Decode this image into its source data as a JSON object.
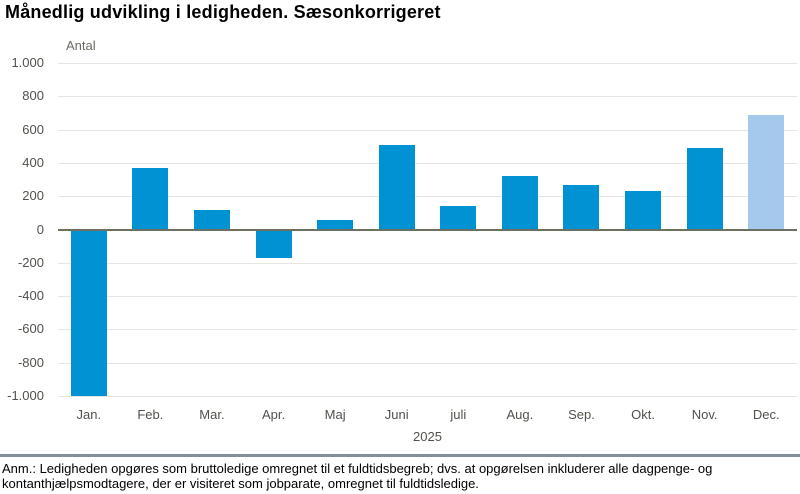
{
  "page": {
    "title": "Månedlig udvikling i ledigheden. Sæsonkorrigeret",
    "footnote": "Anm.: Ledigheden opgøres som bruttoledige omregnet til et fuldtidsbegreb; dvs. at opgørelsen inkluderer alle dagpenge- og kontanthjælpsmodtagere, der er visiteret som jobparate, omregnet til fuldtidsledige."
  },
  "chart_data": {
    "type": "bar",
    "title": "Månedlig udvikling i ledigheden. Sæsonkorrigeret",
    "unit_label": "Antal",
    "xlabel": "2025",
    "ylabel": "Antal",
    "categories": [
      "Jan.",
      "Feb.",
      "Mar.",
      "Apr.",
      "Maj",
      "Juni",
      "juli",
      "Aug.",
      "Sep.",
      "Okt.",
      "Nov.",
      "Dec."
    ],
    "values": [
      -1000,
      370,
      120,
      -170,
      60,
      510,
      140,
      320,
      270,
      230,
      490,
      690
    ],
    "highlight_index": 11,
    "ylim": [
      -1000,
      1000
    ],
    "ytick_step": 200,
    "ytick_labels": [
      "1.000",
      "800",
      "600",
      "400",
      "200",
      "0",
      "-200",
      "-400",
      "-600",
      "-800",
      "-1.000"
    ],
    "grid": true,
    "legend": "none",
    "colors": {
      "bar": "#0092d2",
      "highlight_bar": "#a4c9ed",
      "gridline": "#e6e6e0",
      "zero_line": "#6c7060",
      "axis_text": "#51514b"
    }
  }
}
